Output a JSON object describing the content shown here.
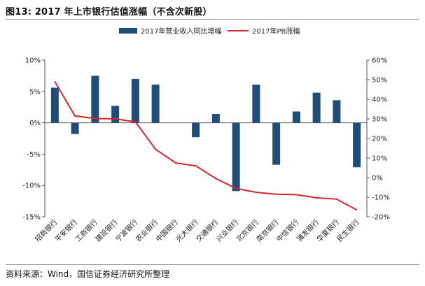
{
  "title": "图13: 2017 年上市银行估值涨幅（不含次新股）",
  "source": "资料来源：Wind，国信证券经济研究所整理",
  "colors": {
    "bar": "#1f4e79",
    "line": "#d9232e"
  },
  "chart_data": {
    "type": "bar+line",
    "categories": [
      "招商银行",
      "平安银行",
      "工商银行",
      "建设银行",
      "宁波银行",
      "农业银行",
      "中国银行",
      "光大银行",
      "交通银行",
      "兴业银行",
      "北京银行",
      "南京银行",
      "中信银行",
      "浦发银行",
      "华夏银行",
      "民生银行"
    ],
    "series": [
      {
        "name": "2017年营业收入同比增幅",
        "type": "bar",
        "axis": "left",
        "values": [
          5.6,
          -1.8,
          7.5,
          2.7,
          7.0,
          6.1,
          null,
          -2.3,
          1.4,
          -10.9,
          6.1,
          -6.7,
          1.8,
          4.8,
          3.6,
          -7.1
        ]
      },
      {
        "name": "2017年PB涨幅",
        "type": "line",
        "axis": "right",
        "values": [
          49,
          31.5,
          30.2,
          30.0,
          28.5,
          14.5,
          7.5,
          6.0,
          -0.5,
          -5.5,
          -7.5,
          -8.5,
          -8.7,
          -10.3,
          -11.0,
          -16.5
        ]
      }
    ],
    "y_left": {
      "min": -15,
      "max": 10,
      "ticks": [
        10,
        5,
        0,
        -5,
        -10,
        -15
      ],
      "labels": [
        "10%",
        "5%",
        "0%",
        "-5%",
        "-10%",
        "-15%"
      ]
    },
    "y_right": {
      "min": -20,
      "max": 60,
      "ticks": [
        60,
        50,
        40,
        30,
        20,
        10,
        0,
        -10,
        -20
      ],
      "labels": [
        "60%",
        "50%",
        "40%",
        "30%",
        "20%",
        "10%",
        "0%",
        "-10%",
        "-20%"
      ]
    },
    "legend": [
      "2017年营业收入同比增幅",
      "2017年PB涨幅"
    ],
    "legend_position": "top-center"
  }
}
